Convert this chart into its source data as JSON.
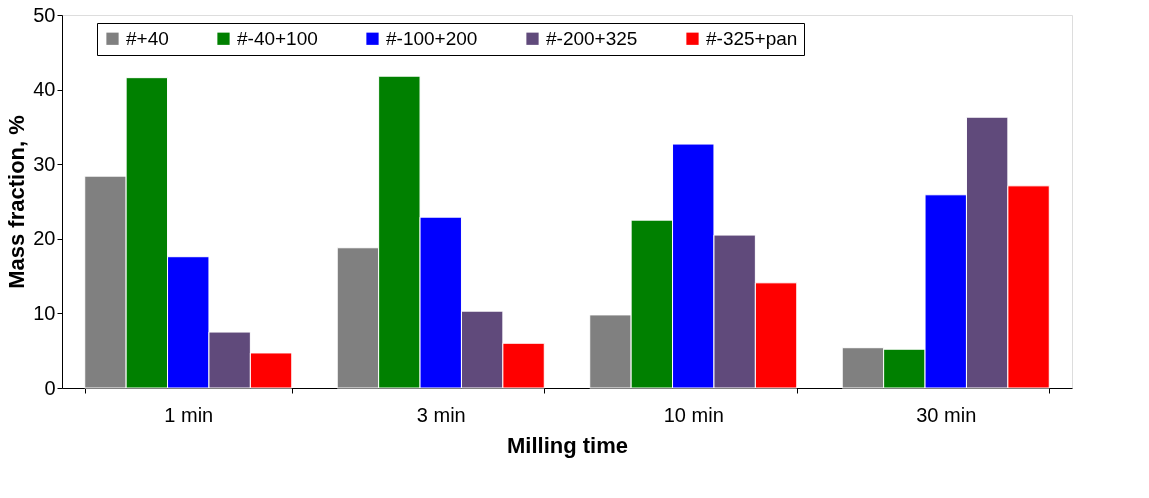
{
  "chart_data": {
    "type": "bar",
    "xlabel": "Milling time",
    "ylabel": "Mass fraction, %",
    "categories": [
      "1 min",
      "3 min",
      "10 min",
      "30 min"
    ],
    "series": [
      {
        "name": "#+40",
        "color": "#808080",
        "values": [
          28.4,
          18.8,
          9.8,
          5.4
        ]
      },
      {
        "name": "#-40+100",
        "color": "#008000",
        "values": [
          41.6,
          41.8,
          22.5,
          5.2
        ]
      },
      {
        "name": "#-100+200",
        "color": "#0000ff",
        "values": [
          17.6,
          22.9,
          32.7,
          25.9
        ]
      },
      {
        "name": "#-200+325",
        "color": "#604a7b",
        "values": [
          7.5,
          10.3,
          20.5,
          36.3
        ]
      },
      {
        "name": "#-325+pan",
        "color": "#ff0000",
        "values": [
          4.7,
          6.0,
          14.1,
          27.1
        ]
      }
    ],
    "ylim": [
      0,
      50
    ],
    "yticks": [
      0,
      10,
      20,
      30,
      40,
      50
    ],
    "grid": false,
    "legend": "top"
  }
}
